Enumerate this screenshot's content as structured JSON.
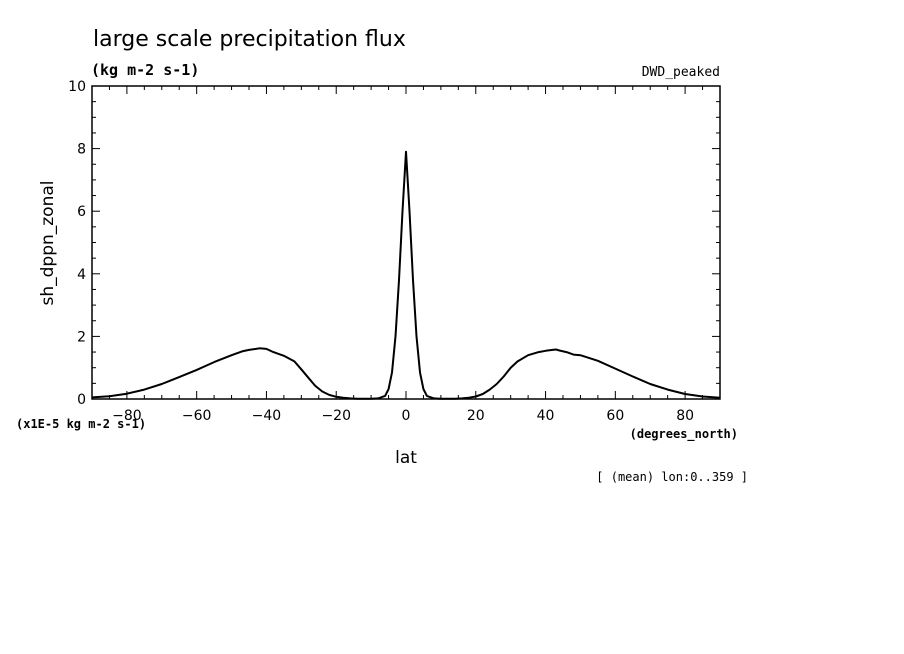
{
  "chart_data": {
    "type": "line",
    "title": "large scale precipitation flux",
    "units_label": "(kg m-2 s-1)",
    "dataset_label": "DWD_peaked",
    "xlabel": "lat",
    "x_units": "(degrees_north)",
    "ylabel": "sh_dppn_zonal",
    "y_scale_label": "(x1E-5 kg m-2 s-1)",
    "subset_note": "[ (mean) lon:0..359 ]",
    "xlim": [
      -90,
      90
    ],
    "ylim": [
      0,
      10
    ],
    "x_ticks": [
      -80,
      -60,
      -40,
      -20,
      0,
      20,
      40,
      60,
      80
    ],
    "x_tick_labels": [
      "-80",
      "-60",
      "-40",
      "-20",
      "0",
      "20",
      "40",
      "60",
      "80"
    ],
    "y_ticks": [
      0,
      2,
      4,
      6,
      8,
      10
    ],
    "y_tick_labels": [
      "0",
      "2",
      "4",
      "6",
      "8",
      "10"
    ],
    "grid": false,
    "colors": {
      "line": "#000000",
      "axes": "#000000",
      "background": "#ffffff"
    },
    "series": [
      {
        "x": [
          -90,
          -85,
          -80,
          -75,
          -70,
          -65,
          -60,
          -55,
          -50,
          -47,
          -45,
          -43,
          -42,
          -40,
          -38,
          -35,
          -32,
          -30,
          -28,
          -26,
          -24,
          -22,
          -20,
          -18,
          -16,
          -14,
          -12,
          -10,
          -8,
          -6,
          -5,
          -4,
          -3,
          -2,
          -1,
          0,
          1,
          2,
          3,
          4,
          5,
          6,
          8,
          10,
          12,
          14,
          16,
          18,
          20,
          22,
          24,
          26,
          28,
          30,
          32,
          35,
          38,
          40,
          42,
          43,
          44,
          46,
          48,
          50,
          55,
          60,
          65,
          70,
          75,
          80,
          85,
          90
        ],
        "values": [
          0.05,
          0.09,
          0.17,
          0.3,
          0.48,
          0.7,
          0.93,
          1.18,
          1.4,
          1.52,
          1.57,
          1.6,
          1.62,
          1.6,
          1.5,
          1.38,
          1.2,
          0.95,
          0.68,
          0.42,
          0.24,
          0.13,
          0.07,
          0.04,
          0.02,
          0.01,
          0.01,
          0.01,
          0.02,
          0.1,
          0.32,
          0.85,
          2.0,
          3.8,
          6.0,
          7.9,
          6.0,
          3.8,
          2.0,
          0.85,
          0.32,
          0.1,
          0.02,
          0.01,
          0.01,
          0.01,
          0.02,
          0.04,
          0.08,
          0.16,
          0.3,
          0.48,
          0.72,
          1.0,
          1.2,
          1.4,
          1.5,
          1.54,
          1.57,
          1.58,
          1.55,
          1.5,
          1.42,
          1.4,
          1.22,
          0.97,
          0.72,
          0.48,
          0.3,
          0.16,
          0.08,
          0.04
        ]
      }
    ]
  }
}
